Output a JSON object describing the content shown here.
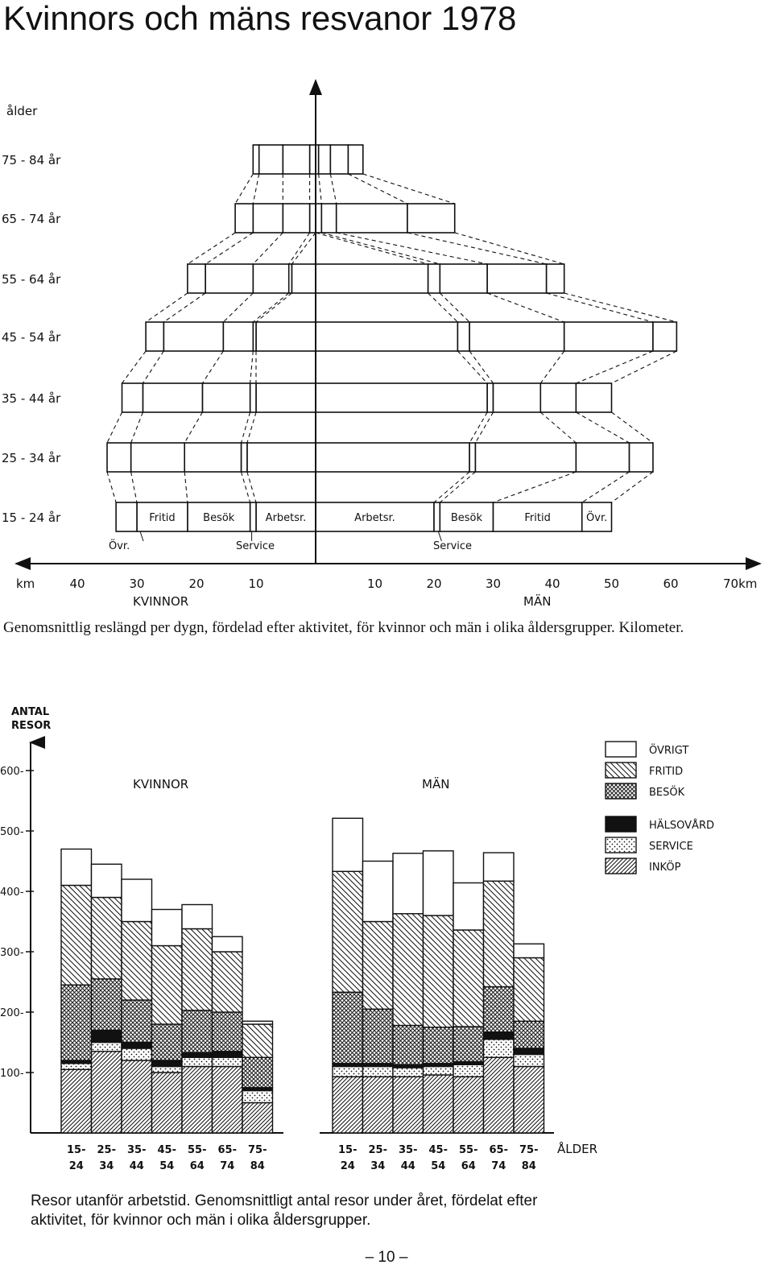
{
  "page": {
    "title": "Kvinnors och mäns resvanor 1978",
    "page_number": "– 10 –"
  },
  "figure1": {
    "caption": "Genomsnittlig reslängd per dygn, fördelad efter aktivitet, för kvinnor och män i olika åldersgrupper. Kilometer.",
    "y_axis_label": "ålder",
    "x_unit_left": "km",
    "x_unit_right": "70km",
    "x_ticks_left": [
      "40",
      "30",
      "20",
      "10"
    ],
    "x_ticks_right": [
      "10",
      "20",
      "30",
      "40",
      "50",
      "60"
    ],
    "group_left": "KVINNOR",
    "group_right": "MÄN",
    "segment_labels_women": [
      "Fritid",
      "Besök",
      "Arbetsr."
    ],
    "segment_labels_men": [
      "Arbetsr.",
      "Besök",
      "Fritid",
      "Övr."
    ],
    "callout_labels": [
      "Övr.",
      "Service",
      "Service"
    ]
  },
  "chart_data": [
    {
      "type": "bar",
      "orientation": "horizontal-mirrored",
      "categories": [
        "75 - 84 år",
        "65 - 74 år",
        "55 - 64 år",
        "45 - 54 år",
        "35 - 44 år",
        "25 - 34 år",
        "15 - 24 år"
      ],
      "xlim": [
        -40,
        70
      ],
      "segment_order": [
        "Arbetsr.",
        "Service",
        "Besök",
        "Fritid",
        "Övr."
      ],
      "women": [
        {
          "age": "75 - 84 år",
          "segments": [
            0,
            1,
            4.5,
            4,
            1
          ]
        },
        {
          "age": "65 - 74 år",
          "segments": [
            0,
            1,
            4.5,
            5,
            3
          ]
        },
        {
          "age": "55 - 64 år",
          "segments": [
            4,
            0.5,
            6,
            8,
            3
          ]
        },
        {
          "age": "45 - 54 år",
          "segments": [
            10,
            0.5,
            5,
            10,
            3
          ]
        },
        {
          "age": "35 - 44 år",
          "segments": [
            10,
            1,
            8,
            10,
            3.5
          ]
        },
        {
          "age": "25 - 34 år",
          "segments": [
            11.5,
            1,
            9.5,
            9,
            4
          ]
        },
        {
          "age": "15 - 24 år",
          "segments": [
            10,
            1,
            10.5,
            8.5,
            3.5
          ]
        }
      ],
      "men": [
        {
          "age": "75 - 84 år",
          "segments": [
            0,
            0.5,
            2,
            3,
            2.5
          ]
        },
        {
          "age": "65 - 74 år",
          "segments": [
            0,
            1,
            2.5,
            12,
            8
          ]
        },
        {
          "age": "55 - 64 år",
          "segments": [
            19,
            2,
            8,
            10,
            3
          ]
        },
        {
          "age": "45 - 54 år",
          "segments": [
            24,
            2,
            16,
            15,
            4
          ]
        },
        {
          "age": "35 - 44 år",
          "segments": [
            29,
            1,
            8,
            6,
            6
          ]
        },
        {
          "age": "25 - 34 år",
          "segments": [
            26,
            1,
            17,
            9,
            4
          ]
        },
        {
          "age": "15 - 24 år",
          "segments": [
            20,
            1,
            9,
            15,
            5
          ]
        }
      ]
    },
    {
      "type": "bar",
      "stacked": true,
      "title": "",
      "ylabel": "ANTAL RESOR",
      "xlabel": "ÅLDER",
      "ylim": [
        0,
        600
      ],
      "yticks": [
        "100",
        "200",
        "300",
        "400",
        "500",
        "600"
      ],
      "categories_top": [
        "15-",
        "25-",
        "35-",
        "45-",
        "55-",
        "65-",
        "75-"
      ],
      "categories_bottom": [
        "24",
        "34",
        "44",
        "54",
        "64",
        "74",
        "84"
      ],
      "groups": [
        "KVINNOR",
        "MÄN"
      ],
      "series": [
        {
          "name": "INKÖP",
          "kvinnor": [
            105,
            135,
            120,
            100,
            110,
            110,
            50
          ],
          "man": [
            93,
            93,
            93,
            96,
            93,
            125,
            110
          ]
        },
        {
          "name": "SERVICE",
          "kvinnor": [
            10,
            15,
            20,
            10,
            15,
            15,
            20
          ],
          "man": [
            17,
            17,
            15,
            14,
            20,
            30,
            20
          ]
        },
        {
          "name": "HÄLSOVÅRD",
          "kvinnor": [
            5,
            20,
            10,
            10,
            8,
            10,
            5
          ],
          "man": [
            5,
            5,
            5,
            5,
            5,
            12,
            10
          ]
        },
        {
          "name": "BESÖK",
          "kvinnor": [
            125,
            85,
            70,
            60,
            70,
            65,
            50
          ],
          "man": [
            118,
            90,
            65,
            60,
            58,
            75,
            45
          ]
        },
        {
          "name": "FRITID",
          "kvinnor": [
            165,
            135,
            130,
            130,
            135,
            100,
            55
          ],
          "man": [
            200,
            145,
            185,
            185,
            160,
            175,
            105
          ]
        },
        {
          "name": "ÖVRIGT",
          "kvinnor": [
            60,
            55,
            70,
            60,
            40,
            25,
            5
          ],
          "man": [
            88,
            100,
            100,
            107,
            78,
            47,
            23
          ]
        }
      ]
    }
  ]
}
